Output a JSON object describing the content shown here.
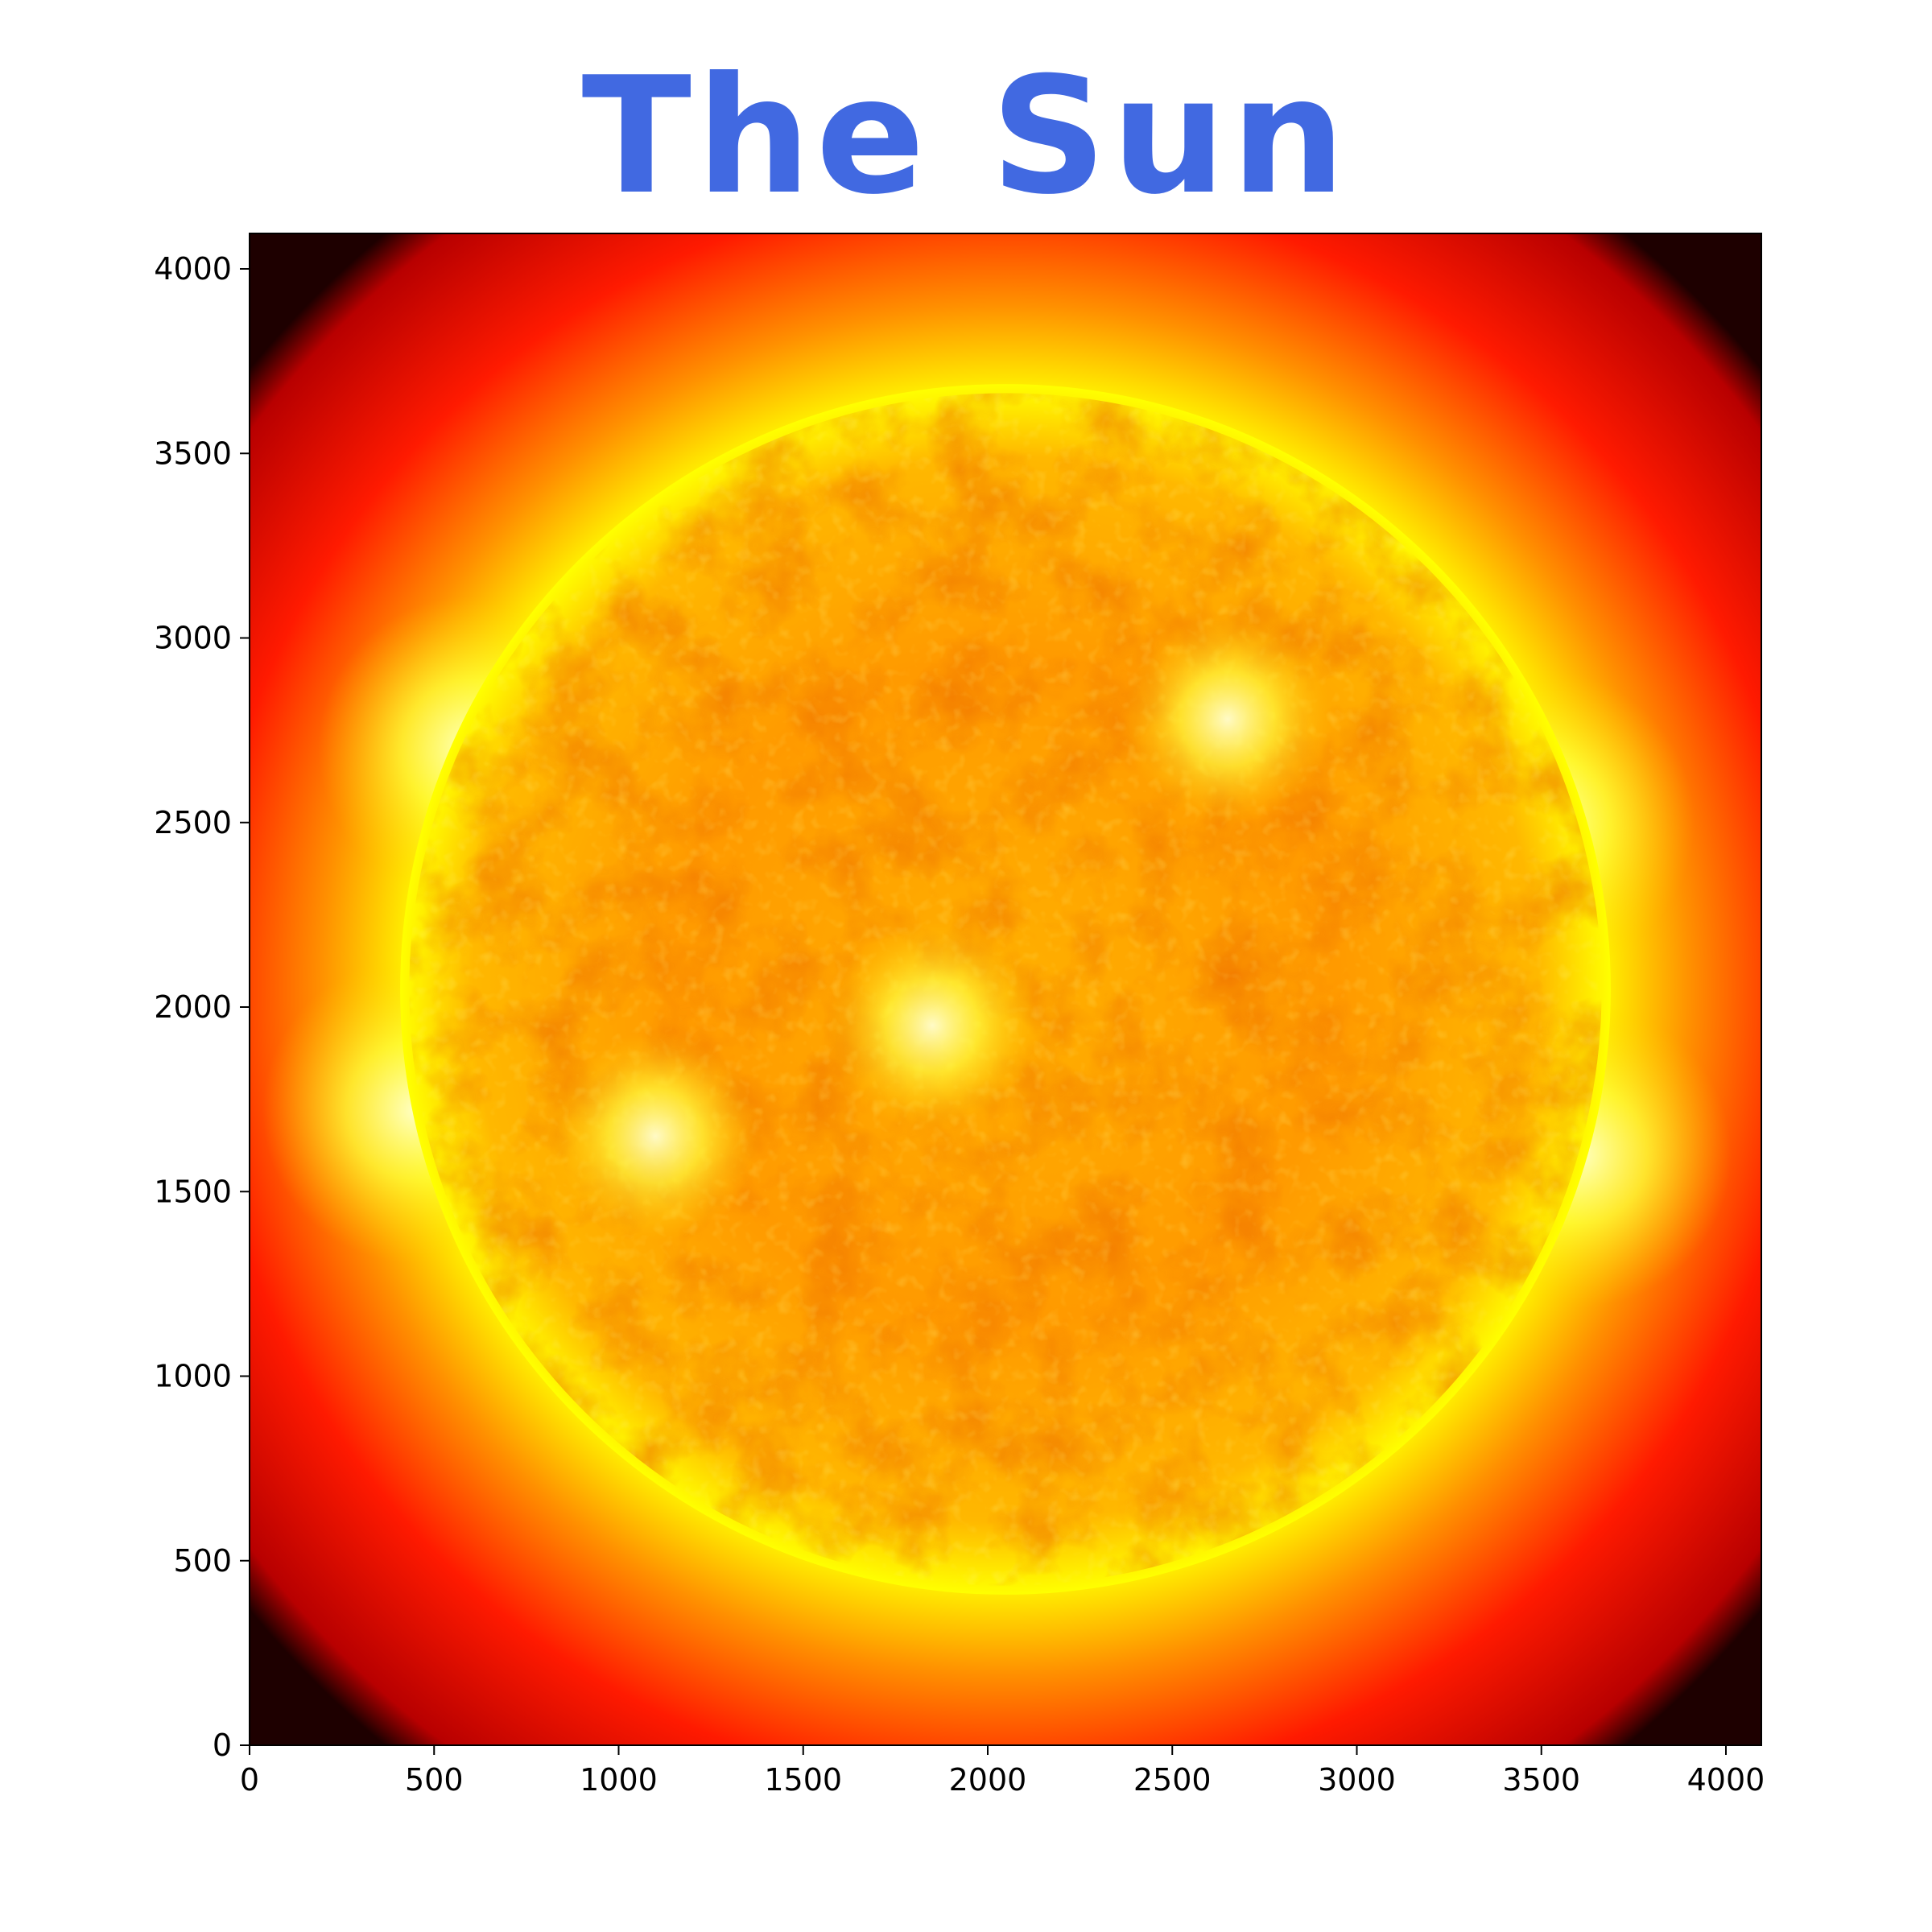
{
  "colors": {
    "title": "#4169e1",
    "space": "#1e0000",
    "corona_outer": "#b80000",
    "corona_mid": "#ff1a00",
    "limb": "#ffff00",
    "disk": "#ff9a00",
    "axis": "#000000"
  },
  "chart_data": {
    "type": "image",
    "title": "The Sun",
    "xlabel": "",
    "ylabel": "",
    "xlim": [
      0,
      4096
    ],
    "ylim": [
      0,
      4096
    ],
    "image_extent": [
      0,
      4096,
      0,
      4096
    ],
    "sun_center": [
      2048,
      2048
    ],
    "sun_radius": 1640,
    "corona_radius": 2650,
    "x_ticks": [
      0,
      500,
      1000,
      1500,
      2000,
      2500,
      3000,
      3500,
      4000
    ],
    "y_ticks": [
      0,
      500,
      1000,
      1500,
      2000,
      2500,
      3000,
      3500,
      4000
    ],
    "active_regions": [
      {
        "x": 450,
        "y": 1720
      },
      {
        "x": 3600,
        "y": 1600
      },
      {
        "x": 3500,
        "y": 2500
      },
      {
        "x": 1850,
        "y": 1950
      },
      {
        "x": 2650,
        "y": 2780
      },
      {
        "x": 1100,
        "y": 1650
      },
      {
        "x": 600,
        "y": 2700
      }
    ],
    "grid": false,
    "legend": "none"
  }
}
